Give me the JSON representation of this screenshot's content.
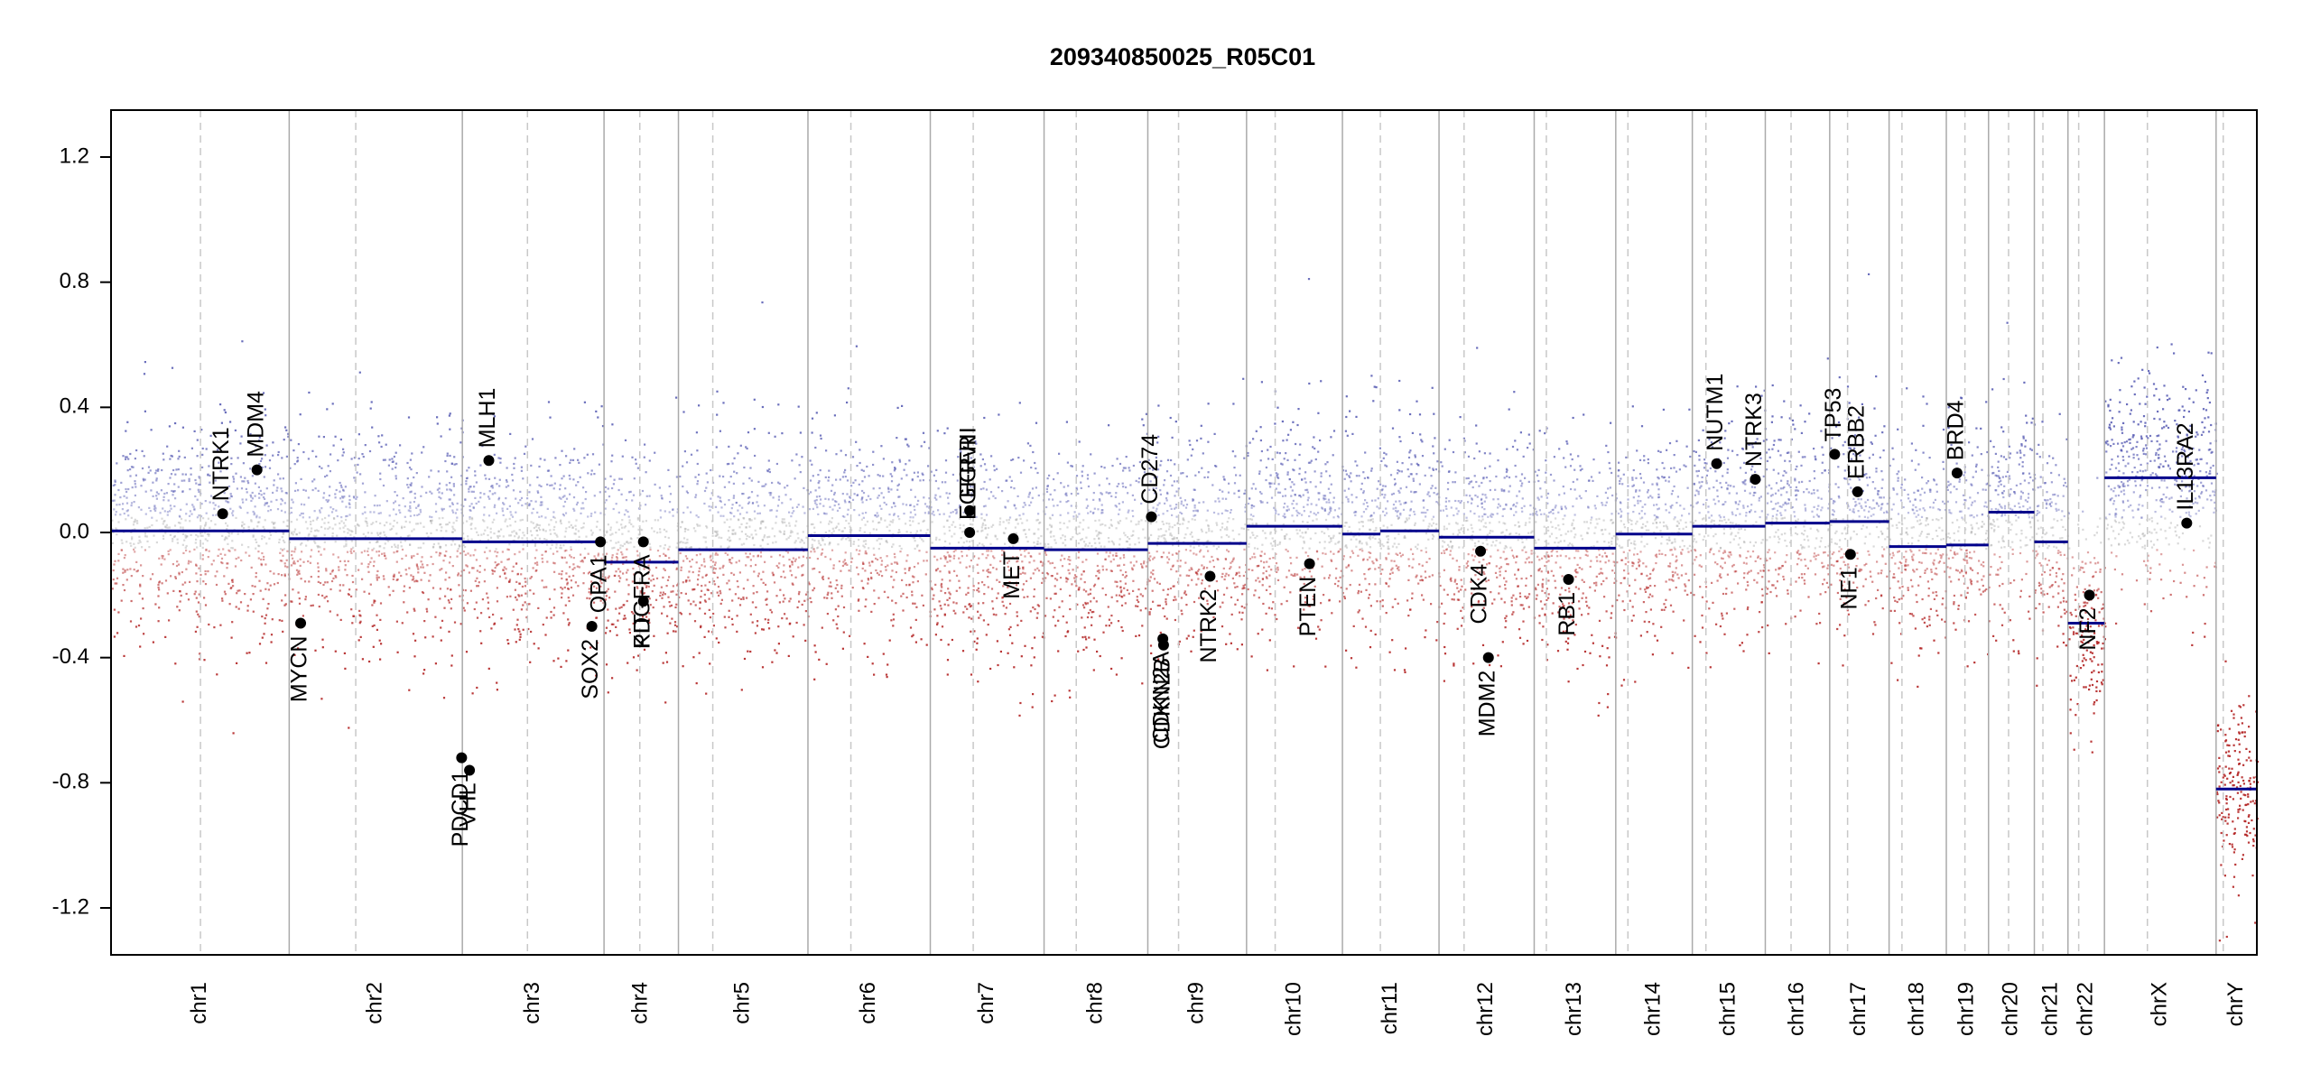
{
  "chart_data": {
    "type": "scatter",
    "title": "209340850025_R05C01",
    "xlabel": "",
    "ylabel": "",
    "ylim": [
      -1.35,
      1.35
    ],
    "y_ticks": [
      -1.2,
      -0.8,
      -0.4,
      0.0,
      0.4,
      0.8,
      1.2
    ],
    "y_tick_labels": [
      "-1.2",
      "-0.8",
      "-0.4",
      "0.0",
      "0.4",
      "0.8",
      "1.2"
    ],
    "colors": {
      "gain": "#5b5fb5",
      "loss": "#b22222",
      "neutral": "#bbbbbb",
      "segment": "#00008b",
      "boundary": "#aaaaaa",
      "centromere": "#c8c8c8",
      "gene_point": "#000000"
    },
    "chromosomes": [
      {
        "name": "chr1",
        "size": 249,
        "centromere": 125
      },
      {
        "name": "chr2",
        "size": 242,
        "centromere": 93
      },
      {
        "name": "chr3",
        "size": 198,
        "centromere": 91
      },
      {
        "name": "chr4",
        "size": 104,
        "centromere": 50
      },
      {
        "name": "chr5",
        "size": 181,
        "centromere": 48
      },
      {
        "name": "chr6",
        "size": 171,
        "centromere": 60
      },
      {
        "name": "chr7",
        "size": 159,
        "centromere": 60
      },
      {
        "name": "chr8",
        "size": 145,
        "centromere": 45
      },
      {
        "name": "chr9",
        "size": 138,
        "centromere": 43
      },
      {
        "name": "chr10",
        "size": 134,
        "centromere": 40
      },
      {
        "name": "chr11",
        "size": 135,
        "centromere": 53
      },
      {
        "name": "chr12",
        "size": 133,
        "centromere": 35
      },
      {
        "name": "chr13",
        "size": 114,
        "centromere": 17
      },
      {
        "name": "chr14",
        "size": 107,
        "centromere": 17
      },
      {
        "name": "chr15",
        "size": 102,
        "centromere": 19
      },
      {
        "name": "chr16",
        "size": 90,
        "centromere": 36
      },
      {
        "name": "chr17",
        "size": 83,
        "centromere": 25
      },
      {
        "name": "chr18",
        "size": 80,
        "centromere": 18
      },
      {
        "name": "chr19",
        "size": 59,
        "centromere": 26
      },
      {
        "name": "chr20",
        "size": 64,
        "centromere": 28
      },
      {
        "name": "chr21",
        "size": 47,
        "centromere": 12
      },
      {
        "name": "chr22",
        "size": 51,
        "centromere": 15
      },
      {
        "name": "chrX",
        "size": 156,
        "centromere": 60
      },
      {
        "name": "chrY",
        "size": 57,
        "centromere": 10
      }
    ],
    "segments": [
      {
        "chr": "chr1",
        "start": 0,
        "end": 249,
        "y": 0.005
      },
      {
        "chr": "chr2",
        "start": 0,
        "end": 242,
        "y": -0.02
      },
      {
        "chr": "chr3",
        "start": 0,
        "end": 198,
        "y": -0.03
      },
      {
        "chr": "chr4",
        "start": 0,
        "end": 104,
        "y": -0.095
      },
      {
        "chr": "chr5",
        "start": 0,
        "end": 181,
        "y": -0.055
      },
      {
        "chr": "chr6",
        "start": 0,
        "end": 171,
        "y": -0.01
      },
      {
        "chr": "chr7",
        "start": 0,
        "end": 159,
        "y": -0.05
      },
      {
        "chr": "chr8",
        "start": 0,
        "end": 145,
        "y": -0.055
      },
      {
        "chr": "chr9",
        "start": 0,
        "end": 138,
        "y": -0.035
      },
      {
        "chr": "chr10",
        "start": 0,
        "end": 134,
        "y": 0.02
      },
      {
        "chr": "chr11",
        "start": 0,
        "end": 53,
        "y": -0.005
      },
      {
        "chr": "chr11",
        "start": 53,
        "end": 135,
        "y": 0.005
      },
      {
        "chr": "chr12",
        "start": 0,
        "end": 133,
        "y": -0.015
      },
      {
        "chr": "chr13",
        "start": 0,
        "end": 114,
        "y": -0.05
      },
      {
        "chr": "chr14",
        "start": 0,
        "end": 107,
        "y": -0.005
      },
      {
        "chr": "chr15",
        "start": 0,
        "end": 102,
        "y": 0.02
      },
      {
        "chr": "chr16",
        "start": 0,
        "end": 90,
        "y": 0.03
      },
      {
        "chr": "chr17",
        "start": 0,
        "end": 83,
        "y": 0.035
      },
      {
        "chr": "chr18",
        "start": 0,
        "end": 80,
        "y": -0.045
      },
      {
        "chr": "chr19",
        "start": 0,
        "end": 59,
        "y": -0.04
      },
      {
        "chr": "chr20",
        "start": 0,
        "end": 64,
        "y": 0.065
      },
      {
        "chr": "chr21",
        "start": 0,
        "end": 47,
        "y": -0.03
      },
      {
        "chr": "chr22",
        "start": 0,
        "end": 51,
        "y": -0.29
      },
      {
        "chr": "chrX",
        "start": 0,
        "end": 156,
        "y": 0.175
      },
      {
        "chr": "chrY",
        "start": 0,
        "end": 57,
        "y": -0.82
      }
    ],
    "genes": [
      {
        "name": "NTRK1",
        "chr": "chr1",
        "pos": 156,
        "y": 0.06
      },
      {
        "name": "MDM4",
        "chr": "chr1",
        "pos": 204,
        "y": 0.2
      },
      {
        "name": "MYCN",
        "chr": "chr2",
        "pos": 16,
        "y": -0.29
      },
      {
        "name": "PDCD1",
        "chr": "chr2",
        "pos": 241,
        "y": -0.72
      },
      {
        "name": "VHL",
        "chr": "chr3",
        "pos": 10,
        "y": -0.76
      },
      {
        "name": "MLH1",
        "chr": "chr3",
        "pos": 37,
        "y": 0.23
      },
      {
        "name": "SOX2",
        "chr": "chr3",
        "pos": 181,
        "y": -0.3
      },
      {
        "name": "OPA1",
        "chr": "chr3",
        "pos": 193,
        "y": -0.03
      },
      {
        "name": "PDGFRA",
        "chr": "chr4",
        "pos": 55,
        "y": -0.03
      },
      {
        "name": "KIT",
        "chr": "chr4",
        "pos": 55,
        "y": -0.22
      },
      {
        "name": "EGFR",
        "chr": "chr7",
        "pos": 55,
        "y": 0.07
      },
      {
        "name": "EGFRvIII",
        "chr": "chr7",
        "pos": 55,
        "y": 0.0
      },
      {
        "name": "MET",
        "chr": "chr7",
        "pos": 116,
        "y": -0.02
      },
      {
        "name": "CD274",
        "chr": "chr9",
        "pos": 5,
        "y": 0.05
      },
      {
        "name": "CDKN2A",
        "chr": "chr9",
        "pos": 21,
        "y": -0.34
      },
      {
        "name": "CDKN2B",
        "chr": "chr9",
        "pos": 22,
        "y": -0.36
      },
      {
        "name": "NTRK2",
        "chr": "chr9",
        "pos": 87,
        "y": -0.14
      },
      {
        "name": "PTEN",
        "chr": "chr10",
        "pos": 88,
        "y": -0.1
      },
      {
        "name": "CDK4",
        "chr": "chr12",
        "pos": 58,
        "y": -0.06
      },
      {
        "name": "MDM2",
        "chr": "chr12",
        "pos": 69,
        "y": -0.4
      },
      {
        "name": "RB1",
        "chr": "chr13",
        "pos": 48,
        "y": -0.15
      },
      {
        "name": "NUTM1",
        "chr": "chr15",
        "pos": 34,
        "y": 0.22
      },
      {
        "name": "NTRK3",
        "chr": "chr15",
        "pos": 88,
        "y": 0.17
      },
      {
        "name": "TP53",
        "chr": "chr17",
        "pos": 7,
        "y": 0.25
      },
      {
        "name": "NF1",
        "chr": "chr17",
        "pos": 29,
        "y": -0.07
      },
      {
        "name": "ERBB2",
        "chr": "chr17",
        "pos": 39,
        "y": 0.13
      },
      {
        "name": "BRD4",
        "chr": "chr19",
        "pos": 15,
        "y": 0.19
      },
      {
        "name": "NF2",
        "chr": "chr22",
        "pos": 30,
        "y": -0.2
      },
      {
        "name": "IL13RA2",
        "chr": "chrX",
        "pos": 115,
        "y": 0.03
      }
    ],
    "scatter_note": "Per-probe log2 ratio points, dense, colored by sign (blue = gain, red = loss)"
  }
}
